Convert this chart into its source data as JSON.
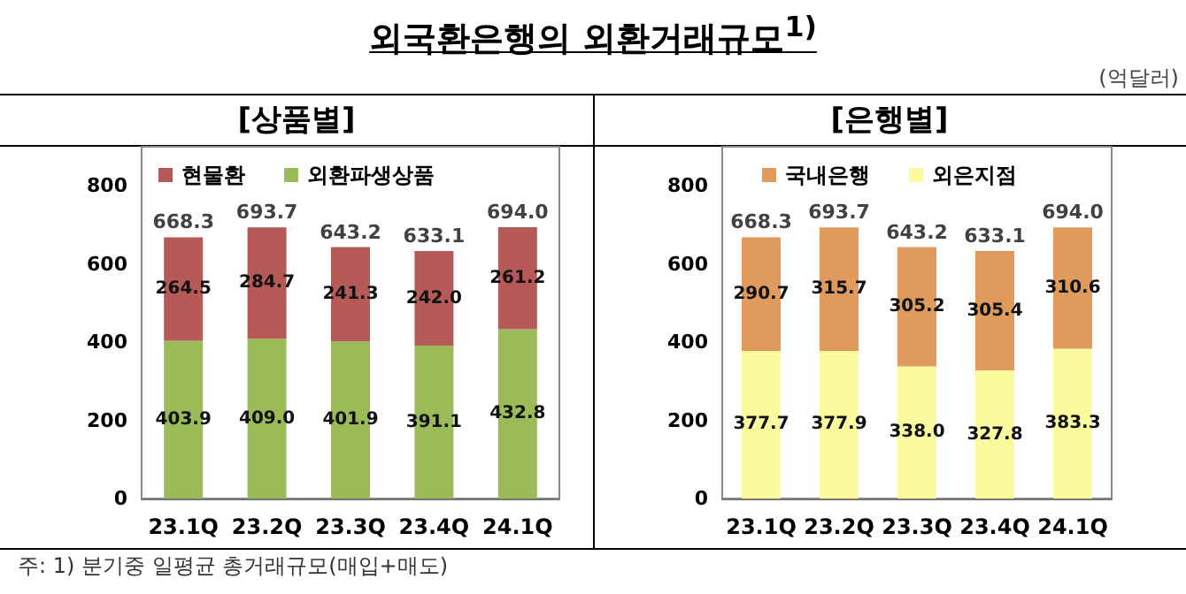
{
  "chart_data": [
    {
      "type": "bar",
      "title": "외국환은행의 외환거래규모$^{1)}$",
      "subtitle": "[상품별]",
      "annotations": [
        "주: 1) 분기중 일평균 총거래규모(매입+매도)"
      ],
      "categories": [
        "23.1Q",
        "23.2Q",
        "23.3Q",
        "23.4Q",
        "24.1Q"
      ],
      "series": [
        {
          "name": "외환파생상품",
          "color": "#9bbb59",
          "values": [
            403.9,
            409.0,
            401.9,
            391.1,
            432.8
          ],
          "value_labels": [
            "403.9",
            "409.0",
            "401.9",
            "391.1",
            "432.8"
          ]
        },
        {
          "name": "현물환",
          "color": "#b65a57",
          "values": [
            264.5,
            284.7,
            241.3,
            242.0,
            261.2
          ],
          "value_labels": [
            "264.5",
            "284.7",
            "241.3",
            "242.0",
            "261.2"
          ]
        }
      ],
      "stacked": true,
      "totals": [
        "668.3",
        "693.7",
        "643.2",
        "633.1",
        "694.0"
      ],
      "ylim": [
        0,
        900
      ],
      "yticks": [
        0,
        200,
        400,
        600,
        800
      ],
      "grid": false,
      "legend": "top"
    },
    {
      "type": "bar",
      "subtitle": "[은행별]",
      "annotations": [
        "(억달러)"
      ],
      "categories": [
        "23.1Q",
        "23.2Q",
        "23.3Q",
        "23.4Q",
        "24.1Q"
      ],
      "series": [
        {
          "name": "외은지점",
          "color": "#fbfb9e",
          "values": [
            377.7,
            377.9,
            338.0,
            327.8,
            383.3
          ],
          "value_labels": [
            "377.7",
            "377.9",
            "338.0",
            "327.8",
            "383.3"
          ]
        },
        {
          "name": "국내은행",
          "color": "#e09a5c",
          "values": [
            290.7,
            315.7,
            305.2,
            305.4,
            310.6
          ],
          "value_labels": [
            "290.7",
            "315.7",
            "305.2",
            "305.4",
            "310.6"
          ]
        }
      ],
      "stacked": true,
      "totals": [
        "668.3",
        "693.7",
        "643.2",
        "633.1",
        "694.0"
      ],
      "ylim": [
        0,
        900
      ],
      "yticks": [
        0,
        200,
        400,
        600,
        800
      ],
      "grid": false,
      "legend": "top"
    }
  ]
}
